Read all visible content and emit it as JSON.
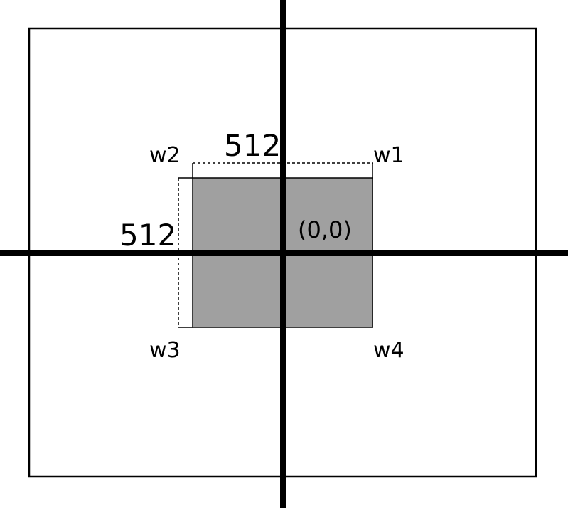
{
  "diagram": {
    "labels": {
      "corner_top_left": "w2",
      "corner_top_right": "w1",
      "corner_bottom_left": "w3",
      "corner_bottom_right": "w4",
      "width_dimension": "512",
      "height_dimension": "512",
      "origin": "(0,0)"
    },
    "colors": {
      "region_fill": "#a0a0a0",
      "stroke": "#000000",
      "background": "#ffffff"
    }
  }
}
